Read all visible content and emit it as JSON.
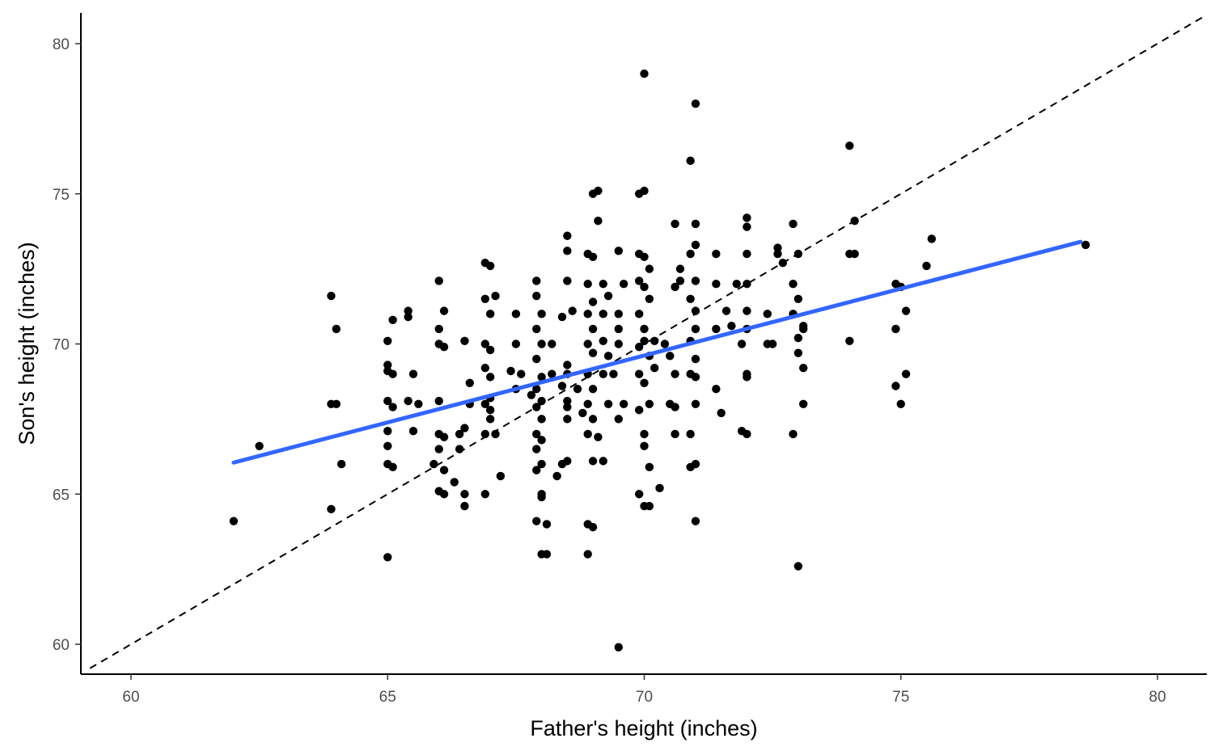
{
  "chart_data": {
    "type": "scatter",
    "title": "",
    "xlabel": "Father's height (inches)",
    "ylabel": "Son's height (inches)",
    "xlim": [
      59,
      81
    ],
    "ylim": [
      59,
      81
    ],
    "x_ticks": [
      60,
      65,
      70,
      75,
      80
    ],
    "y_ticks": [
      60,
      65,
      70,
      75,
      80
    ],
    "x_tick_labels": [
      "60",
      "65",
      "70",
      "75",
      "80"
    ],
    "y_tick_labels": [
      "60",
      "65",
      "70",
      "75",
      "80"
    ],
    "grid": false,
    "legend": "none",
    "colors": {
      "points": "#000000",
      "fit_line": "#3366ff",
      "reference_line": "#000000",
      "axis": "#000000",
      "tick_label": "#4d4d4d"
    },
    "reference_line": {
      "slope": 1,
      "intercept": 0,
      "style": "dashed"
    },
    "fit_line": {
      "x": [
        62.0,
        78.5
      ],
      "y": [
        66.05,
        73.4
      ]
    },
    "points": [
      [
        62.0,
        64.1
      ],
      [
        62.5,
        66.6
      ],
      [
        63.9,
        71.6
      ],
      [
        63.9,
        64.5
      ],
      [
        64.0,
        70.5
      ],
      [
        64.0,
        68.0
      ],
      [
        63.9,
        68.0
      ],
      [
        64.1,
        66.0
      ],
      [
        65.0,
        70.1
      ],
      [
        65.0,
        69.3
      ],
      [
        65.0,
        69.1
      ],
      [
        65.1,
        69.0
      ],
      [
        65.0,
        68.1
      ],
      [
        65.1,
        67.9
      ],
      [
        65.0,
        67.1
      ],
      [
        65.0,
        66.6
      ],
      [
        65.0,
        66.0
      ],
      [
        65.1,
        65.9
      ],
      [
        65.0,
        62.9
      ],
      [
        65.1,
        70.8
      ],
      [
        65.4,
        71.1
      ],
      [
        65.4,
        70.9
      ],
      [
        65.4,
        68.1
      ],
      [
        65.6,
        68.0
      ],
      [
        65.5,
        69.0
      ],
      [
        65.5,
        67.1
      ],
      [
        66.0,
        72.1
      ],
      [
        66.1,
        71.1
      ],
      [
        66.0,
        70.5
      ],
      [
        66.0,
        70.0
      ],
      [
        66.1,
        69.9
      ],
      [
        66.0,
        68.1
      ],
      [
        66.0,
        67.0
      ],
      [
        66.1,
        66.9
      ],
      [
        66.0,
        66.5
      ],
      [
        65.9,
        66.0
      ],
      [
        66.1,
        65.8
      ],
      [
        66.0,
        65.1
      ],
      [
        66.1,
        65.0
      ],
      [
        66.3,
        65.4
      ],
      [
        66.5,
        70.1
      ],
      [
        66.6,
        68.7
      ],
      [
        66.6,
        68.0
      ],
      [
        66.5,
        67.2
      ],
      [
        66.4,
        67.0
      ],
      [
        66.4,
        66.5
      ],
      [
        66.5,
        65.0
      ],
      [
        66.5,
        64.6
      ],
      [
        66.9,
        72.7
      ],
      [
        67.0,
        72.6
      ],
      [
        66.9,
        71.5
      ],
      [
        67.1,
        71.6
      ],
      [
        67.0,
        71.0
      ],
      [
        66.9,
        70.0
      ],
      [
        67.0,
        69.8
      ],
      [
        66.9,
        69.2
      ],
      [
        67.0,
        68.9
      ],
      [
        67.0,
        68.2
      ],
      [
        66.9,
        68.0
      ],
      [
        67.0,
        67.8
      ],
      [
        67.0,
        67.5
      ],
      [
        66.9,
        67.0
      ],
      [
        67.1,
        67.0
      ],
      [
        66.9,
        65.0
      ],
      [
        67.2,
        65.6
      ],
      [
        67.5,
        71.0
      ],
      [
        67.5,
        70.0
      ],
      [
        67.4,
        69.1
      ],
      [
        67.6,
        69.0
      ],
      [
        67.5,
        68.5
      ],
      [
        67.8,
        68.3
      ],
      [
        67.9,
        72.1
      ],
      [
        67.9,
        71.6
      ],
      [
        68.0,
        71.0
      ],
      [
        67.9,
        70.5
      ],
      [
        68.0,
        70.0
      ],
      [
        67.9,
        69.5
      ],
      [
        68.0,
        68.9
      ],
      [
        67.9,
        68.5
      ],
      [
        68.0,
        68.1
      ],
      [
        67.9,
        67.9
      ],
      [
        68.0,
        67.5
      ],
      [
        67.9,
        67.0
      ],
      [
        68.0,
        66.8
      ],
      [
        67.9,
        66.5
      ],
      [
        68.0,
        66.0
      ],
      [
        67.9,
        65.8
      ],
      [
        68.0,
        65.0
      ],
      [
        68.0,
        64.9
      ],
      [
        67.9,
        64.1
      ],
      [
        68.1,
        64.0
      ],
      [
        68.0,
        63.0
      ],
      [
        68.1,
        63.0
      ],
      [
        68.2,
        70.0
      ],
      [
        68.2,
        69.0
      ],
      [
        68.3,
        65.6
      ],
      [
        68.5,
        73.6
      ],
      [
        68.5,
        73.1
      ],
      [
        68.5,
        72.1
      ],
      [
        68.4,
        70.9
      ],
      [
        68.5,
        69.3
      ],
      [
        68.5,
        69.0
      ],
      [
        68.4,
        68.6
      ],
      [
        68.5,
        68.1
      ],
      [
        68.5,
        67.9
      ],
      [
        68.5,
        67.5
      ],
      [
        68.5,
        66.1
      ],
      [
        68.4,
        66.0
      ],
      [
        68.6,
        71.1
      ],
      [
        68.7,
        68.5
      ],
      [
        68.8,
        67.7
      ],
      [
        68.9,
        73.0
      ],
      [
        69.0,
        72.9
      ],
      [
        68.9,
        72.0
      ],
      [
        69.0,
        71.4
      ],
      [
        68.9,
        71.0
      ],
      [
        69.0,
        70.5
      ],
      [
        68.9,
        70.0
      ],
      [
        69.0,
        69.7
      ],
      [
        68.9,
        69.0
      ],
      [
        69.0,
        68.5
      ],
      [
        68.9,
        68.0
      ],
      [
        69.0,
        67.5
      ],
      [
        68.9,
        67.0
      ],
      [
        69.0,
        66.1
      ],
      [
        68.9,
        64.0
      ],
      [
        69.0,
        63.9
      ],
      [
        68.9,
        63.0
      ],
      [
        69.1,
        74.1
      ],
      [
        69.0,
        75.0
      ],
      [
        69.1,
        75.1
      ],
      [
        69.2,
        72.0
      ],
      [
        69.3,
        71.6
      ],
      [
        69.2,
        71.0
      ],
      [
        69.2,
        70.1
      ],
      [
        69.3,
        69.6
      ],
      [
        69.2,
        69.0
      ],
      [
        69.3,
        68.0
      ],
      [
        69.1,
        66.9
      ],
      [
        69.2,
        66.1
      ],
      [
        69.5,
        73.1
      ],
      [
        69.5,
        71.0
      ],
      [
        69.5,
        70.5
      ],
      [
        69.5,
        70.0
      ],
      [
        69.4,
        69.0
      ],
      [
        69.6,
        68.0
      ],
      [
        69.5,
        67.5
      ],
      [
        69.5,
        59.9
      ],
      [
        69.6,
        72.0
      ],
      [
        69.9,
        75.0
      ],
      [
        70.0,
        75.1
      ],
      [
        69.9,
        73.0
      ],
      [
        70.0,
        72.9
      ],
      [
        70.1,
        72.5
      ],
      [
        69.9,
        72.1
      ],
      [
        70.0,
        71.9
      ],
      [
        70.1,
        71.5
      ],
      [
        69.9,
        71.0
      ],
      [
        70.0,
        70.5
      ],
      [
        70.0,
        70.1
      ],
      [
        69.9,
        69.9
      ],
      [
        70.1,
        69.6
      ],
      [
        69.9,
        69.0
      ],
      [
        70.0,
        68.7
      ],
      [
        70.1,
        68.0
      ],
      [
        69.9,
        67.8
      ],
      [
        70.0,
        67.0
      ],
      [
        70.0,
        66.6
      ],
      [
        70.1,
        65.9
      ],
      [
        69.9,
        65.0
      ],
      [
        70.0,
        64.6
      ],
      [
        70.1,
        64.6
      ],
      [
        70.0,
        79.0
      ],
      [
        70.3,
        65.2
      ],
      [
        70.2,
        70.1
      ],
      [
        70.2,
        69.2
      ],
      [
        70.4,
        70.0
      ],
      [
        70.5,
        69.6
      ],
      [
        70.6,
        69.0
      ],
      [
        70.5,
        68.0
      ],
      [
        70.6,
        67.9
      ],
      [
        70.6,
        71.9
      ],
      [
        70.7,
        72.1
      ],
      [
        70.7,
        72.5
      ],
      [
        70.6,
        67.0
      ],
      [
        70.6,
        74.0
      ],
      [
        70.9,
        73.0
      ],
      [
        71.0,
        72.1
      ],
      [
        70.9,
        71.5
      ],
      [
        71.0,
        71.1
      ],
      [
        71.0,
        70.5
      ],
      [
        70.9,
        70.1
      ],
      [
        71.0,
        69.5
      ],
      [
        70.9,
        69.0
      ],
      [
        71.0,
        68.0
      ],
      [
        71.0,
        68.9
      ],
      [
        70.9,
        67.0
      ],
      [
        71.0,
        66.0
      ],
      [
        70.9,
        65.9
      ],
      [
        71.0,
        64.1
      ],
      [
        71.0,
        74.0
      ],
      [
        71.0,
        73.3
      ],
      [
        70.9,
        76.1
      ],
      [
        71.0,
        78.0
      ],
      [
        71.4,
        73.0
      ],
      [
        71.4,
        72.0
      ],
      [
        71.4,
        70.5
      ],
      [
        71.4,
        68.5
      ],
      [
        71.6,
        71.1
      ],
      [
        71.5,
        67.7
      ],
      [
        71.7,
        70.6
      ],
      [
        71.8,
        72.0
      ],
      [
        71.9,
        70.0
      ],
      [
        72.0,
        74.2
      ],
      [
        72.0,
        73.9
      ],
      [
        72.0,
        73.0
      ],
      [
        72.0,
        72.0
      ],
      [
        72.0,
        71.1
      ],
      [
        72.0,
        70.5
      ],
      [
        72.0,
        69.0
      ],
      [
        72.0,
        68.9
      ],
      [
        71.9,
        67.1
      ],
      [
        72.0,
        67.0
      ],
      [
        72.4,
        71.0
      ],
      [
        72.4,
        70.0
      ],
      [
        72.5,
        70.0
      ],
      [
        72.6,
        73.2
      ],
      [
        72.6,
        73.0
      ],
      [
        72.7,
        72.7
      ],
      [
        72.9,
        74.0
      ],
      [
        73.0,
        73.0
      ],
      [
        72.9,
        72.0
      ],
      [
        73.0,
        71.5
      ],
      [
        72.9,
        71.0
      ],
      [
        73.0,
        70.2
      ],
      [
        73.0,
        69.7
      ],
      [
        72.9,
        67.0
      ],
      [
        73.0,
        62.6
      ],
      [
        73.1,
        70.6
      ],
      [
        73.1,
        70.5
      ],
      [
        73.1,
        69.2
      ],
      [
        73.1,
        68.0
      ],
      [
        74.0,
        76.6
      ],
      [
        74.0,
        73.0
      ],
      [
        74.1,
        73.0
      ],
      [
        74.0,
        70.1
      ],
      [
        74.1,
        74.1
      ],
      [
        74.9,
        72.0
      ],
      [
        75.0,
        71.9
      ],
      [
        74.9,
        70.5
      ],
      [
        74.9,
        68.6
      ],
      [
        75.0,
        68.0
      ],
      [
        75.1,
        71.1
      ],
      [
        75.1,
        69.0
      ],
      [
        75.5,
        72.6
      ],
      [
        75.6,
        73.5
      ],
      [
        78.6,
        73.3
      ]
    ]
  }
}
